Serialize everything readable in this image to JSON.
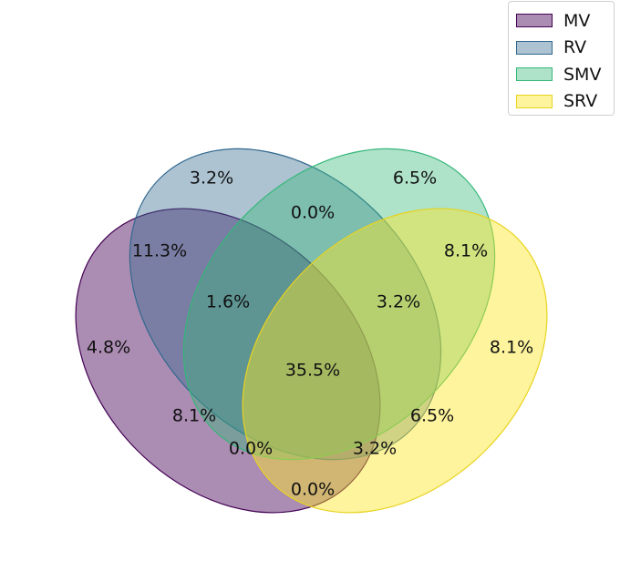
{
  "sets": [
    {
      "name": "MV",
      "fill": "#440154",
      "edge": "#440154"
    },
    {
      "name": "RV",
      "fill": "#31688e",
      "edge": "#31688e"
    },
    {
      "name": "SMV",
      "fill": "#35b779",
      "edge": "#35b779"
    },
    {
      "name": "SRV",
      "fill": "#fde725",
      "edge": "#e8d320"
    }
  ],
  "regions": [
    {
      "sets": [
        "RV"
      ],
      "label": "3.2%"
    },
    {
      "sets": [
        "SMV"
      ],
      "label": "6.5%"
    },
    {
      "sets": [
        "RV",
        "SMV"
      ],
      "label": "0.0%"
    },
    {
      "sets": [
        "MV",
        "RV"
      ],
      "label": "11.3%"
    },
    {
      "sets": [
        "SMV",
        "SRV"
      ],
      "label": "8.1%"
    },
    {
      "sets": [
        "MV",
        "RV",
        "SMV"
      ],
      "label": "1.6%"
    },
    {
      "sets": [
        "RV",
        "SMV",
        "SRV"
      ],
      "label": "3.2%"
    },
    {
      "sets": [
        "MV"
      ],
      "label": "4.8%"
    },
    {
      "sets": [
        "SRV"
      ],
      "label": "8.1%"
    },
    {
      "sets": [
        "MV",
        "RV",
        "SMV",
        "SRV"
      ],
      "label": "35.5%"
    },
    {
      "sets": [
        "MV",
        "SMV"
      ],
      "label": "8.1%"
    },
    {
      "sets": [
        "RV",
        "SRV"
      ],
      "label": "6.5%"
    },
    {
      "sets": [
        "MV",
        "SMV",
        "SRV"
      ],
      "label": "0.0%"
    },
    {
      "sets": [
        "MV",
        "RV",
        "SRV"
      ],
      "label": "3.2%"
    },
    {
      "sets": [
        "MV",
        "SRV"
      ],
      "label": "0.0%"
    }
  ],
  "legend": {
    "position": "top-right"
  }
}
